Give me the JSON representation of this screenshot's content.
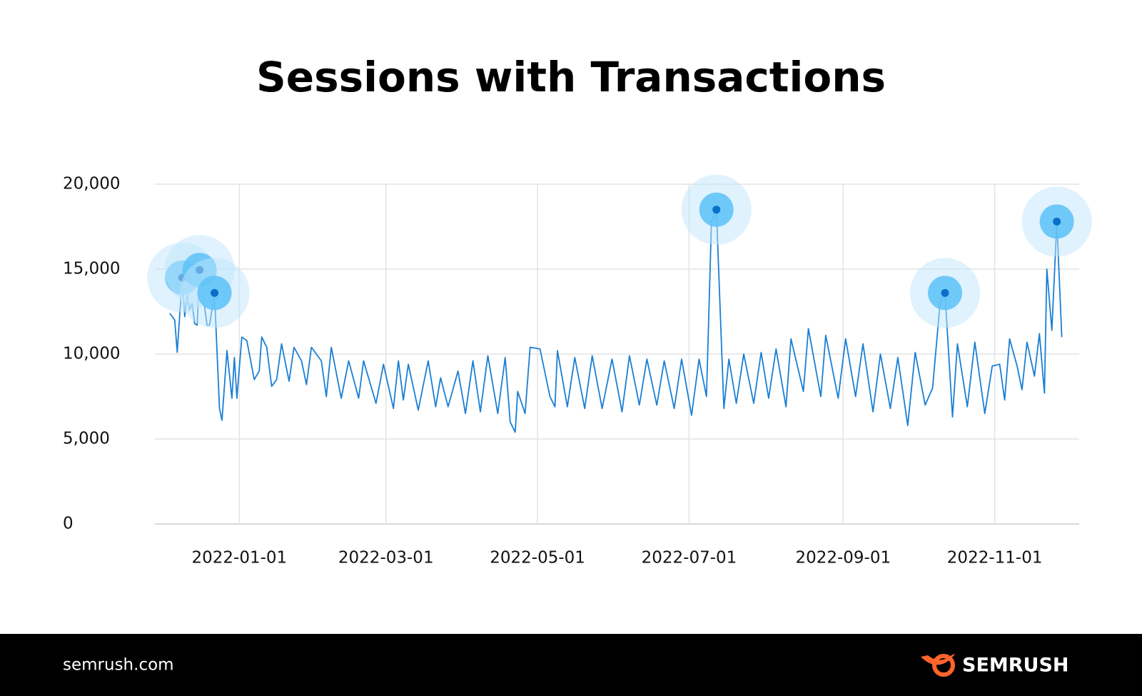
{
  "chart_data": {
    "type": "line",
    "title": "Sessions with Transactions",
    "x": [
      "2021-12-04",
      "2021-12-06",
      "2021-12-07",
      "2021-12-09",
      "2021-12-10",
      "2021-12-11",
      "2021-12-12",
      "2021-12-13",
      "2021-12-14",
      "2021-12-15",
      "2021-12-16",
      "2021-12-19",
      "2021-12-20",
      "2021-12-22",
      "2021-12-24",
      "2021-12-25",
      "2021-12-27",
      "2021-12-29",
      "2021-12-30",
      "2021-12-31",
      "2022-01-02",
      "2022-01-04",
      "2022-01-07",
      "2022-01-09",
      "2022-01-10",
      "2022-01-12",
      "2022-01-14",
      "2022-01-16",
      "2022-01-18",
      "2022-01-21",
      "2022-01-23",
      "2022-01-26",
      "2022-01-28",
      "2022-01-30",
      "2022-02-03",
      "2022-02-05",
      "2022-02-07",
      "2022-02-11",
      "2022-02-14",
      "2022-02-18",
      "2022-02-20",
      "2022-02-25",
      "2022-02-28",
      "2022-03-04",
      "2022-03-06",
      "2022-03-08",
      "2022-03-10",
      "2022-03-14",
      "2022-03-18",
      "2022-03-21",
      "2022-03-23",
      "2022-03-26",
      "2022-03-30",
      "2022-04-02",
      "2022-04-05",
      "2022-04-08",
      "2022-04-11",
      "2022-04-15",
      "2022-04-18",
      "2022-04-20",
      "2022-04-22",
      "2022-04-23",
      "2022-04-26",
      "2022-04-28",
      "2022-05-02",
      "2022-05-06",
      "2022-05-08",
      "2022-05-09",
      "2022-05-13",
      "2022-05-16",
      "2022-05-20",
      "2022-05-23",
      "2022-05-27",
      "2022-05-31",
      "2022-06-04",
      "2022-06-07",
      "2022-06-11",
      "2022-06-14",
      "2022-06-18",
      "2022-06-21",
      "2022-06-25",
      "2022-06-28",
      "2022-07-02",
      "2022-07-05",
      "2022-07-08",
      "2022-07-10",
      "2022-07-12",
      "2022-07-15",
      "2022-07-17",
      "2022-07-20",
      "2022-07-23",
      "2022-07-27",
      "2022-07-30",
      "2022-08-02",
      "2022-08-05",
      "2022-08-09",
      "2022-08-11",
      "2022-08-16",
      "2022-08-18",
      "2022-08-23",
      "2022-08-25",
      "2022-08-30",
      "2022-09-02",
      "2022-09-06",
      "2022-09-09",
      "2022-09-13",
      "2022-09-16",
      "2022-09-20",
      "2022-09-23",
      "2022-09-27",
      "2022-09-30",
      "2022-10-04",
      "2022-10-07",
      "2022-10-10",
      "2022-10-12",
      "2022-10-15",
      "2022-10-17",
      "2022-10-21",
      "2022-10-24",
      "2022-10-28",
      "2022-10-31",
      "2022-11-03",
      "2022-11-05",
      "2022-11-07",
      "2022-11-10",
      "2022-11-12",
      "2022-11-14",
      "2022-11-17",
      "2022-11-19",
      "2022-11-21",
      "2022-11-22",
      "2022-11-24",
      "2022-11-26",
      "2022-11-28"
    ],
    "values": [
      12400,
      12000,
      10100,
      14500,
      12200,
      13500,
      12600,
      13000,
      11800,
      11700,
      14950,
      11700,
      11700,
      13600,
      6800,
      6100,
      10200,
      7400,
      9800,
      7400,
      11000,
      10800,
      8500,
      9000,
      11000,
      10400,
      8100,
      8500,
      10600,
      8400,
      10400,
      9600,
      8200,
      10400,
      9600,
      7500,
      10400,
      7400,
      9600,
      7400,
      9600,
      7100,
      9400,
      6800,
      9600,
      7300,
      9400,
      6700,
      9600,
      6900,
      8600,
      6900,
      9000,
      6500,
      9600,
      6600,
      9900,
      6500,
      9800,
      6000,
      5400,
      7800,
      6500,
      10400,
      10300,
      7500,
      6900,
      10200,
      6900,
      9800,
      6800,
      9900,
      6800,
      9700,
      6600,
      9900,
      7000,
      9700,
      7000,
      9600,
      6800,
      9700,
      6400,
      9700,
      7500,
      17800,
      18500,
      6800,
      9700,
      7100,
      10000,
      7100,
      10100,
      7400,
      10300,
      6900,
      10900,
      7800,
      11500,
      7500,
      11100,
      7400,
      10900,
      7500,
      10600,
      6600,
      10000,
      6800,
      9800,
      5800,
      10100,
      7000,
      8000,
      13000,
      13600,
      6300,
      10600,
      6900,
      10700,
      6500,
      9300,
      9400,
      7300,
      10900,
      9300,
      7900,
      10700,
      8700,
      11200,
      7700,
      15000,
      11400,
      17800,
      11000
    ],
    "color": "#1a7fd4",
    "highlights": {
      "x": [
        "2021-12-09",
        "2021-12-16",
        "2021-12-22",
        "2022-07-12",
        "2022-10-12",
        "2022-11-26"
      ],
      "values": [
        14500,
        14950,
        13600,
        18500,
        13600,
        17800
      ]
    },
    "xlim": [
      "2021-11-28",
      "2022-12-05"
    ],
    "xticks": [
      "2022-01-01",
      "2022-03-01",
      "2022-05-01",
      "2022-07-01",
      "2022-09-01",
      "2022-11-01"
    ],
    "ylim": [
      0,
      20000
    ],
    "yticks": [
      0,
      {
        "value": 5000,
        "label": "5,000"
      },
      {
        "value": 10000,
        "label": "10,000"
      },
      {
        "value": 15000,
        "label": "15,000"
      },
      {
        "value": 20000,
        "label": "20,000"
      }
    ],
    "grid": true
  },
  "footer": {
    "site": "semrush.com",
    "brand": "SEMRUSH"
  }
}
